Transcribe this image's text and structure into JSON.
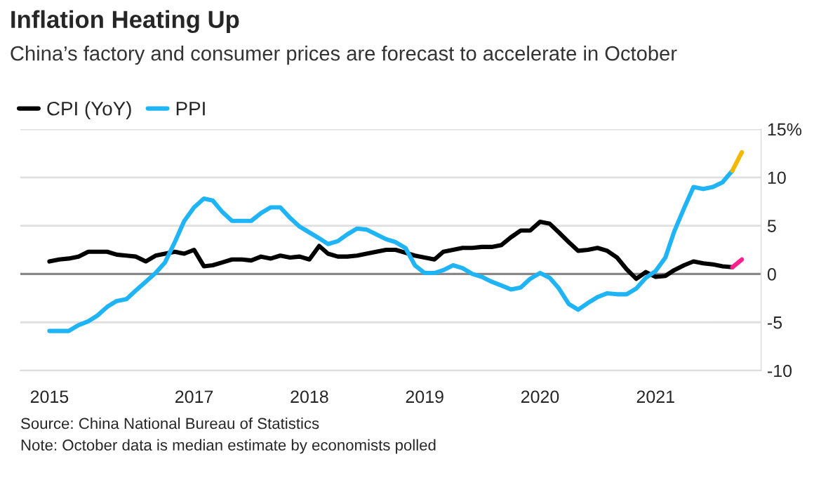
{
  "chart_data": {
    "type": "line",
    "title": "Inflation Heating Up",
    "subtitle": "China’s factory and consumer prices are forecast to accelerate in October",
    "x": [
      "2015-10",
      "2015-11",
      "2015-12",
      "2016-01",
      "2016-02",
      "2016-03",
      "2016-04",
      "2016-05",
      "2016-06",
      "2016-07",
      "2016-08",
      "2016-09",
      "2016-10",
      "2016-11",
      "2016-12",
      "2017-01",
      "2017-02",
      "2017-03",
      "2017-04",
      "2017-05",
      "2017-06",
      "2017-07",
      "2017-08",
      "2017-09",
      "2017-10",
      "2017-11",
      "2017-12",
      "2018-01",
      "2018-02",
      "2018-03",
      "2018-04",
      "2018-05",
      "2018-06",
      "2018-07",
      "2018-08",
      "2018-09",
      "2018-10",
      "2018-11",
      "2018-12",
      "2019-01",
      "2019-02",
      "2019-03",
      "2019-04",
      "2019-05",
      "2019-06",
      "2019-07",
      "2019-08",
      "2019-09",
      "2019-10",
      "2019-11",
      "2019-12",
      "2020-01",
      "2020-02",
      "2020-03",
      "2020-04",
      "2020-05",
      "2020-06",
      "2020-07",
      "2020-08",
      "2020-09",
      "2020-10",
      "2020-11",
      "2020-12",
      "2021-01",
      "2021-02",
      "2021-03",
      "2021-04",
      "2021-05",
      "2021-06",
      "2021-07",
      "2021-08",
      "2021-09",
      "2021-10"
    ],
    "series": [
      {
        "name": "CPI (YoY)",
        "color": "#000000",
        "values": [
          1.3,
          1.5,
          1.6,
          1.8,
          2.3,
          2.3,
          2.3,
          2.0,
          1.9,
          1.8,
          1.3,
          1.9,
          2.1,
          2.3,
          2.1,
          2.5,
          0.8,
          0.9,
          1.2,
          1.5,
          1.5,
          1.4,
          1.8,
          1.6,
          1.9,
          1.7,
          1.8,
          1.5,
          2.9,
          2.1,
          1.8,
          1.8,
          1.9,
          2.1,
          2.3,
          2.5,
          2.5,
          2.2,
          1.9,
          1.7,
          1.5,
          2.3,
          2.5,
          2.7,
          2.7,
          2.8,
          2.8,
          3.0,
          3.8,
          4.5,
          4.5,
          5.4,
          5.2,
          4.3,
          3.3,
          2.4,
          2.5,
          2.7,
          2.4,
          1.7,
          0.5,
          -0.5,
          0.2,
          -0.3,
          -0.2,
          0.4,
          0.9,
          1.3,
          1.1,
          1.0,
          0.8,
          0.7,
          null
        ]
      },
      {
        "name": "PPI",
        "color": "#1fb4f5",
        "values": [
          -5.9,
          -5.9,
          -5.9,
          -5.3,
          -4.9,
          -4.3,
          -3.4,
          -2.8,
          -2.6,
          -1.7,
          -0.8,
          0.1,
          1.2,
          3.3,
          5.5,
          6.9,
          7.8,
          7.6,
          6.4,
          5.5,
          5.5,
          5.5,
          6.3,
          6.9,
          6.9,
          5.8,
          4.9,
          4.3,
          3.7,
          3.1,
          3.4,
          4.1,
          4.7,
          4.6,
          4.1,
          3.6,
          3.3,
          2.7,
          0.9,
          0.1,
          0.1,
          0.4,
          0.9,
          0.6,
          0.0,
          -0.3,
          -0.8,
          -1.2,
          -1.6,
          -1.4,
          -0.5,
          0.1,
          -0.4,
          -1.5,
          -3.1,
          -3.7,
          -3.0,
          -2.4,
          -2.0,
          -2.1,
          -2.1,
          -1.5,
          -0.4,
          0.3,
          1.7,
          4.4,
          6.8,
          9.0,
          8.8,
          9.0,
          9.5,
          10.7,
          null
        ]
      },
      {
        "color": "#ff1f8e",
        "values": [
          null,
          null,
          null,
          null,
          null,
          null,
          null,
          null,
          null,
          null,
          null,
          null,
          null,
          null,
          null,
          null,
          null,
          null,
          null,
          null,
          null,
          null,
          null,
          null,
          null,
          null,
          null,
          null,
          null,
          null,
          null,
          null,
          null,
          null,
          null,
          null,
          null,
          null,
          null,
          null,
          null,
          null,
          null,
          null,
          null,
          null,
          null,
          null,
          null,
          null,
          null,
          null,
          null,
          null,
          null,
          null,
          null,
          null,
          null,
          null,
          null,
          null,
          null,
          null,
          null,
          null,
          null,
          null,
          null,
          null,
          null,
          0.7,
          1.5
        ]
      },
      {
        "color": "#f5b800",
        "values": [
          null,
          null,
          null,
          null,
          null,
          null,
          null,
          null,
          null,
          null,
          null,
          null,
          null,
          null,
          null,
          null,
          null,
          null,
          null,
          null,
          null,
          null,
          null,
          null,
          null,
          null,
          null,
          null,
          null,
          null,
          null,
          null,
          null,
          null,
          null,
          null,
          null,
          null,
          null,
          null,
          null,
          null,
          null,
          null,
          null,
          null,
          null,
          null,
          null,
          null,
          null,
          null,
          null,
          null,
          null,
          null,
          null,
          null,
          null,
          null,
          null,
          null,
          null,
          null,
          null,
          null,
          null,
          null,
          null,
          null,
          null,
          10.7,
          12.6
        ]
      }
    ],
    "xlim": [
      "2015-07",
      "2021-12"
    ],
    "xticks": [
      {
        "value": "2015-10",
        "label": "2015"
      },
      "2017",
      "2018",
      "2019",
      "2020",
      "2021"
    ],
    "ylim": [
      -10,
      15
    ],
    "yticks": [
      -10,
      -5,
      0,
      5,
      10,
      {
        "value": 15,
        "label": "15%"
      }
    ],
    "ref_lines": [
      {
        "axis": "y",
        "value": 0,
        "color": "#888888"
      }
    ],
    "grid": "y",
    "legend": "top left",
    "line_style": "solid",
    "annotations": [
      "Source: China National Bureau of Statistics",
      "Note: October data is median estimate by economists polled"
    ]
  }
}
